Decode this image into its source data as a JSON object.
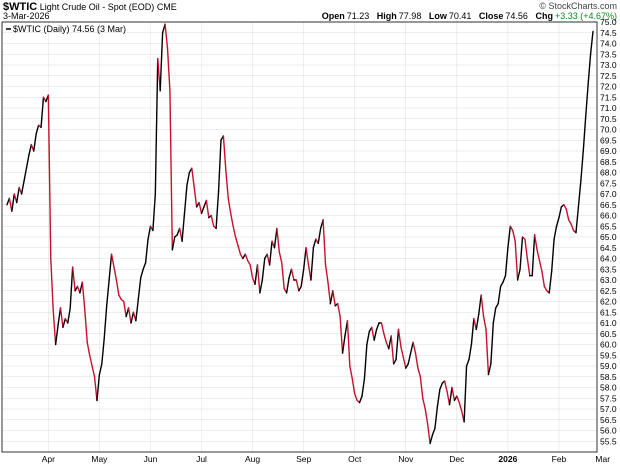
{
  "header": {
    "symbol": "$WTIC",
    "description": "Light Crude Oil - Spot (EOD)",
    "exchange": "CME",
    "date": "3-Mar-2026",
    "brand": "© StockCharts.com",
    "ohlc": {
      "open_label": "Open",
      "open": "71.23",
      "high_label": "High",
      "high": "77.98",
      "low_label": "Low",
      "low": "70.41",
      "close_label": "Close",
      "close": "74.56",
      "chg_label": "Chg",
      "chg": "+3.33 (+4.67%)"
    }
  },
  "legend": {
    "text": "$WTIC (Daily) 74.56 (3 Mar)"
  },
  "colors": {
    "up": "#000000",
    "down": "#c8102e",
    "grid": "#dcdcdc",
    "chg": "#0a8a1f"
  },
  "chart_data": {
    "type": "line",
    "title": "$WTIC Light Crude Oil - Spot (EOD)",
    "ylim": [
      55.0,
      75.0
    ],
    "y_ticks": [
      "55.5",
      "56.0",
      "56.5",
      "57.0",
      "57.5",
      "58.0",
      "58.5",
      "59.0",
      "59.5",
      "60.0",
      "60.5",
      "61.0",
      "61.5",
      "62.0",
      "62.5",
      "63.0",
      "63.5",
      "64.0",
      "64.5",
      "65.0",
      "65.5",
      "66.0",
      "66.5",
      "67.0",
      "67.5",
      "68.0",
      "68.5",
      "69.0",
      "69.5",
      "70.0",
      "70.5",
      "71.0",
      "71.5",
      "72.0",
      "72.5",
      "73.0",
      "73.5",
      "74.0",
      "74.5",
      "75.0"
    ],
    "x_ticks": [
      {
        "label": "Apr",
        "index": 17,
        "bold": false
      },
      {
        "label": "May",
        "index": 38,
        "bold": false
      },
      {
        "label": "Jun",
        "index": 59,
        "bold": false
      },
      {
        "label": "Jul",
        "index": 80,
        "bold": false
      },
      {
        "label": "Aug",
        "index": 101,
        "bold": false
      },
      {
        "label": "Sep",
        "index": 122,
        "bold": false
      },
      {
        "label": "Oct",
        "index": 143,
        "bold": false
      },
      {
        "label": "Nov",
        "index": 164,
        "bold": false
      },
      {
        "label": "Dec",
        "index": 185,
        "bold": false
      },
      {
        "label": "2026",
        "index": 206,
        "bold": true
      },
      {
        "label": "Feb",
        "index": 227,
        "bold": false
      },
      {
        "label": "Mar",
        "index": 245,
        "bold": false
      }
    ],
    "series": [
      {
        "name": "$WTIC",
        "values": [
          66.5,
          66.8,
          66.2,
          67.0,
          66.6,
          67.3,
          67.0,
          67.6,
          68.2,
          68.8,
          69.3,
          69.0,
          69.8,
          70.2,
          70.1,
          71.5,
          71.3,
          71.6,
          64.0,
          61.6,
          60.0,
          60.9,
          61.7,
          60.8,
          61.2,
          61.0,
          61.7,
          63.6,
          62.5,
          62.7,
          62.4,
          62.9,
          61.6,
          60.1,
          59.5,
          59.0,
          58.5,
          57.4,
          58.6,
          59.1,
          60.3,
          61.8,
          63.0,
          64.2,
          63.6,
          63.0,
          62.3,
          62.1,
          62.0,
          61.3,
          61.7,
          61.0,
          61.5,
          61.1,
          62.1,
          63.1,
          63.5,
          63.8,
          64.9,
          65.5,
          65.3,
          67.0,
          73.3,
          71.8,
          74.5,
          74.9,
          73.8,
          71.8,
          64.4,
          65.0,
          65.1,
          65.4,
          64.8,
          66.1,
          67.4,
          68.0,
          68.2,
          67.3,
          66.4,
          66.6,
          66.1,
          66.4,
          66.7,
          65.9,
          66.0,
          65.5,
          65.4,
          67.1,
          69.5,
          69.7,
          68.1,
          66.8,
          66.1,
          65.5,
          65.0,
          64.6,
          64.2,
          64.0,
          64.2,
          63.9,
          63.7,
          63.1,
          62.8,
          63.7,
          62.4,
          63.0,
          64.0,
          64.2,
          63.7,
          64.8,
          64.5,
          65.4,
          64.3,
          63.8,
          62.6,
          62.4,
          63.1,
          63.5,
          63.0,
          63.0,
          62.5,
          62.7,
          63.5,
          64.5,
          63.7,
          63.0,
          64.5,
          64.9,
          64.7,
          65.4,
          65.8,
          63.7,
          62.9,
          61.9,
          62.5,
          61.8,
          61.9,
          61.3,
          59.6,
          60.4,
          61.1,
          59.0,
          58.4,
          57.7,
          57.4,
          57.3,
          57.6,
          58.4,
          60.0,
          60.6,
          60.8,
          60.2,
          60.7,
          61.0,
          61.0,
          60.5,
          60.1,
          59.8,
          60.4,
          59.1,
          59.3,
          60.7,
          59.9,
          59.4,
          58.9,
          59.1,
          59.6,
          60.1,
          59.6,
          58.9,
          58.5,
          57.5,
          57.0,
          56.3,
          55.4,
          55.8,
          56.1,
          57.1,
          57.9,
          58.2,
          58.3,
          57.8,
          57.2,
          58.0,
          57.4,
          57.6,
          57.3,
          56.9,
          56.4,
          59.0,
          59.3,
          60.0,
          61.2,
          60.7,
          61.4,
          62.3,
          61.3,
          60.7,
          58.6,
          59.1,
          61.0,
          61.7,
          61.9,
          62.7,
          62.9,
          63.2,
          64.5,
          65.5,
          65.3,
          64.8,
          63.0,
          63.5,
          65.0,
          64.9,
          64.0,
          63.2,
          63.2,
          65.1,
          64.4,
          63.9,
          63.4,
          62.7,
          62.5,
          62.4,
          63.4,
          64.9,
          65.5,
          65.9,
          66.4,
          66.5,
          66.3,
          65.8,
          65.6,
          65.3,
          65.2,
          66.4,
          67.6,
          69.0,
          70.6,
          72.1,
          73.5,
          74.56
        ]
      }
    ]
  }
}
